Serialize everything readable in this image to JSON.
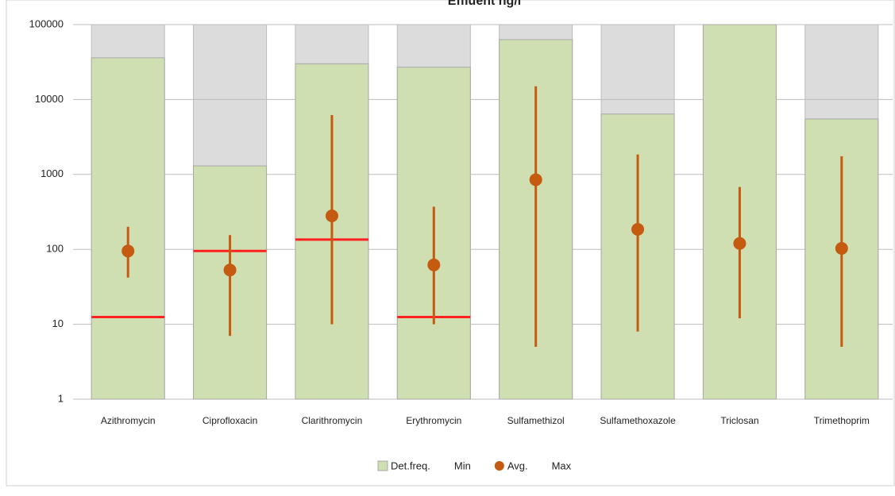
{
  "chart_data": {
    "type": "bar",
    "title": "Effluent ng/l",
    "categories": [
      "Azithromycin",
      "Ciprofloxacin",
      "Clarithromycin",
      "Erythromycin",
      "Sulfamethizol",
      "Sulfamethoxazole",
      "Triclosan",
      "Trimethoprim"
    ],
    "log_scale": true,
    "grid": true,
    "ylim": [
      1,
      100000
    ],
    "yticks": [
      1,
      10,
      100,
      1000,
      10000,
      100000
    ],
    "series": [
      {
        "name": "Det.freq.",
        "color": "#cfdfb1",
        "values": [
          36000,
          1300,
          30000,
          27000,
          63000,
          6400,
          100000,
          5500
        ]
      },
      {
        "name": "Min",
        "color": "#ff2020",
        "values": [
          12.5,
          95,
          135,
          12.5,
          null,
          null,
          null,
          null
        ]
      },
      {
        "name": "Avg.",
        "color": "#c55a11",
        "values": [
          95,
          53,
          280,
          62,
          850,
          185,
          120,
          103
        ],
        "low": [
          42,
          7,
          10,
          10,
          5,
          8,
          12,
          5
        ]
      },
      {
        "name": "Max",
        "color": "#c55a11",
        "values": [
          200,
          155,
          6200,
          370,
          15000,
          1850,
          680,
          1750
        ]
      }
    ]
  }
}
